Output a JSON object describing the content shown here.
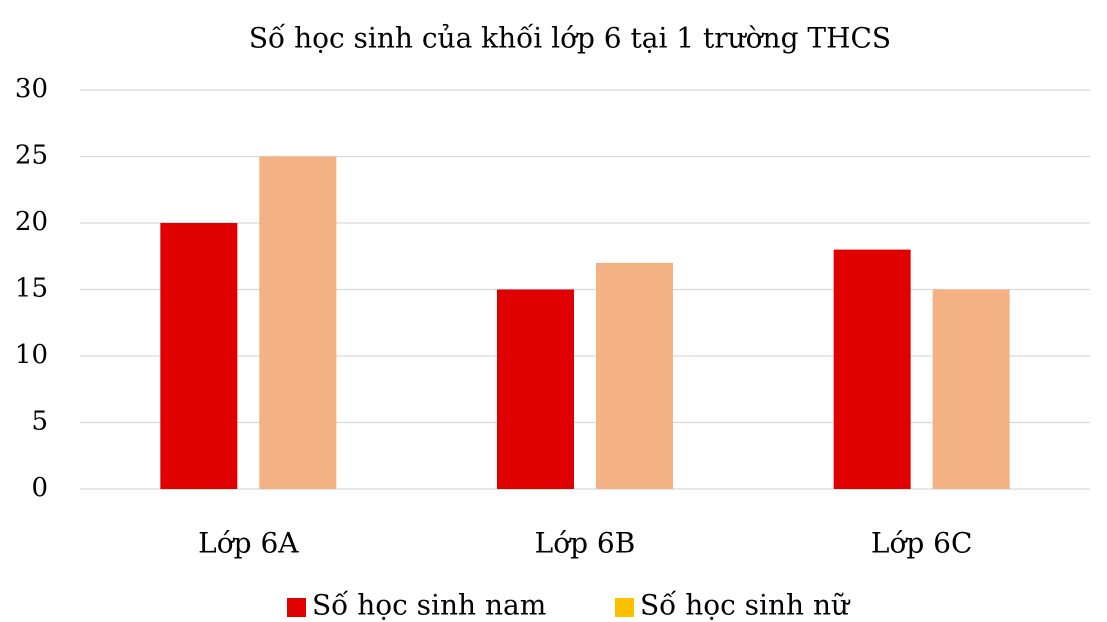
{
  "chart_data": {
    "type": "bar",
    "title": "Số học sinh của khối lớp 6 tại 1 trường THCS",
    "categories": [
      "Lớp 6A",
      "Lớp 6B",
      "Lớp 6C"
    ],
    "series": [
      {
        "name": "Số học sinh nam",
        "color": "#e00000",
        "legend_color": "#e00000",
        "values": [
          20,
          15,
          18
        ]
      },
      {
        "name": "Số học sinh nữ",
        "color": "#f4b183",
        "legend_color": "#ffc000",
        "values": [
          25,
          17,
          15
        ]
      }
    ],
    "ylim": [
      0,
      30
    ],
    "yticks": [
      0,
      5,
      10,
      15,
      20,
      25,
      30
    ],
    "grid": true,
    "legend": "bottom"
  }
}
